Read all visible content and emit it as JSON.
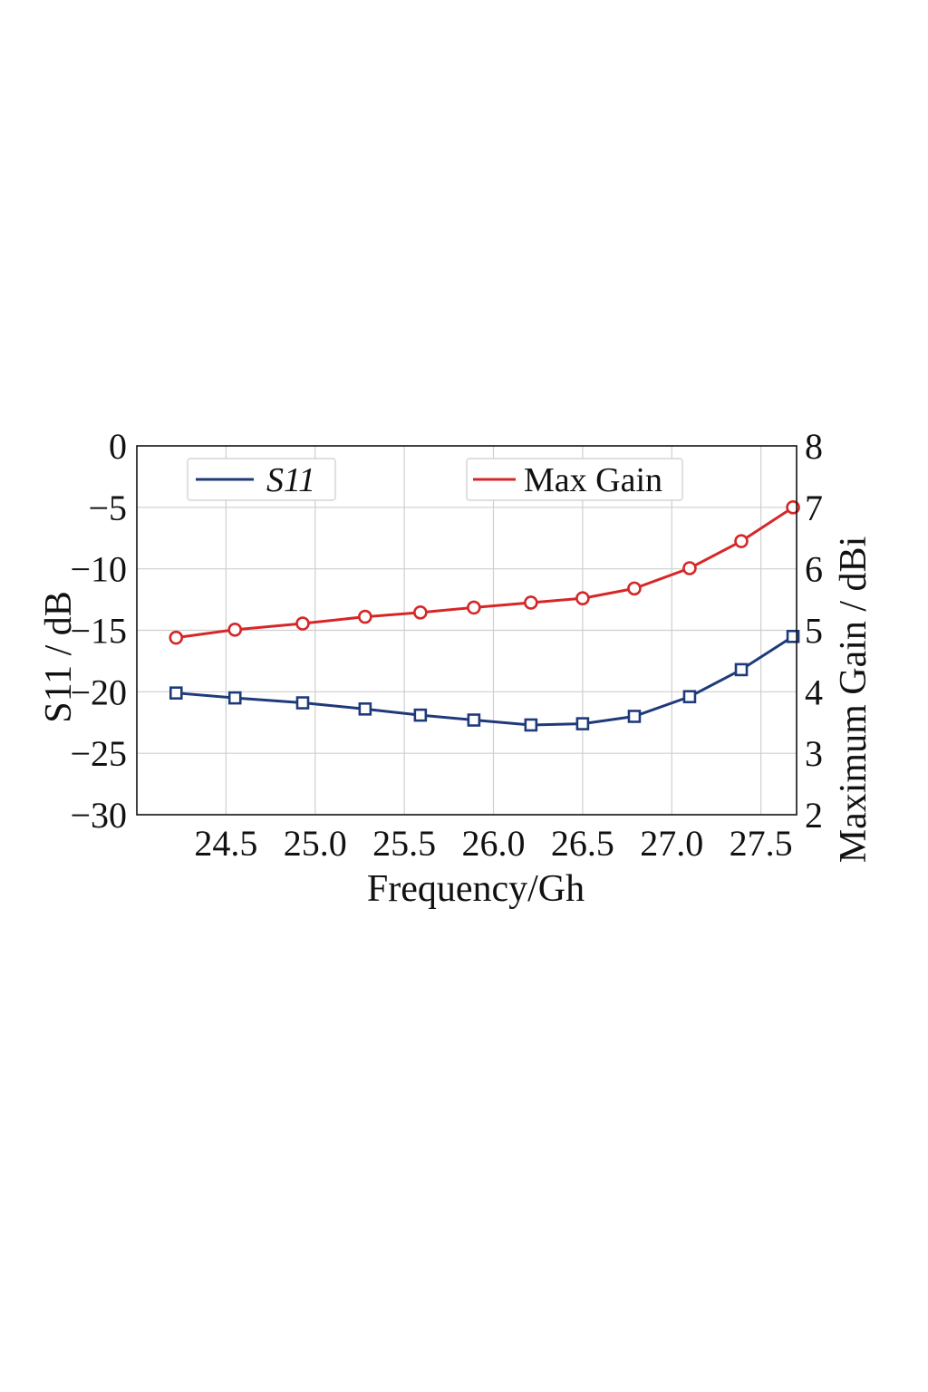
{
  "chart_data": {
    "type": "line",
    "title": "",
    "xlabel": "Frequency/Gh",
    "ylabel_left": "S11 / dB",
    "ylabel_right": "Maximum Gain / dBi",
    "x_ticks": [
      "24.5",
      "25.0",
      "25.5",
      "26.0",
      "26.5",
      "27.0",
      "27.5"
    ],
    "y_left_ticks": [
      "0",
      "−5",
      "−10",
      "−15",
      "−20",
      "−25",
      "−30"
    ],
    "y_right_ticks": [
      "8",
      "7",
      "6",
      "5",
      "4",
      "3",
      "2"
    ],
    "xlim": [
      24.0,
      27.7
    ],
    "ylim_left": [
      -30,
      0
    ],
    "ylim_right": [
      2,
      8
    ],
    "grid": true,
    "legend_placement": "top",
    "series": [
      {
        "name": "S11",
        "axis": "left",
        "color": "#1f3a7a",
        "marker": "square",
        "x": [
          24.22,
          24.55,
          24.93,
          25.28,
          25.59,
          25.89,
          26.21,
          26.5,
          26.79,
          27.1,
          27.39,
          27.68
        ],
        "y": [
          -20.1,
          -20.5,
          -20.9,
          -21.4,
          -21.9,
          -22.3,
          -22.7,
          -22.6,
          -22.0,
          -20.4,
          -18.2,
          -15.5
        ]
      },
      {
        "name": "Max Gain",
        "axis": "right",
        "color": "#d62728",
        "marker": "circle",
        "x": [
          24.22,
          24.55,
          24.93,
          25.28,
          25.59,
          25.89,
          26.21,
          26.5,
          26.79,
          27.1,
          27.39,
          27.68
        ],
        "y": [
          4.88,
          5.01,
          5.11,
          5.22,
          5.29,
          5.37,
          5.45,
          5.52,
          5.68,
          6.01,
          6.45,
          7.0
        ]
      }
    ]
  }
}
